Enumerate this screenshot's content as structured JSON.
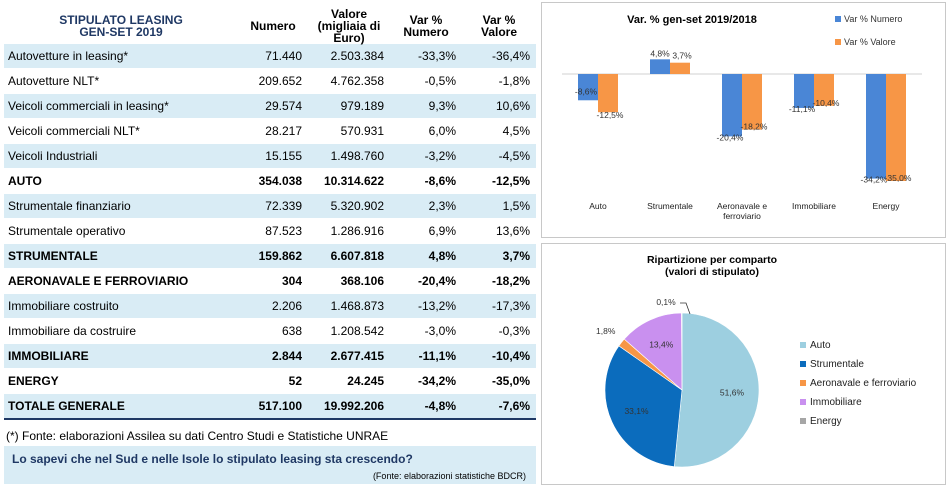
{
  "table": {
    "headers": [
      "STIPULATO LEASING\nGEN-SET  2019",
      "Numero",
      "Valore\n(migliaia di\nEuro)",
      "Var %\nNumero",
      "Var %\nValore"
    ],
    "rows": [
      {
        "label": "Autovetture in leasing*",
        "numero": "71.440",
        "valore": "2.503.384",
        "var_numero": "-33,3%",
        "var_valore": "-36,4%",
        "bold": false
      },
      {
        "label": "Autovetture NLT*",
        "numero": "209.652",
        "valore": "4.762.358",
        "var_numero": "-0,5%",
        "var_valore": "-1,8%",
        "bold": false
      },
      {
        "label": "Veicoli commerciali in leasing*",
        "numero": "29.574",
        "valore": "979.189",
        "var_numero": "9,3%",
        "var_valore": "10,6%",
        "bold": false
      },
      {
        "label": "Veicoli commerciali NLT*",
        "numero": "28.217",
        "valore": "570.931",
        "var_numero": "6,0%",
        "var_valore": "4,5%",
        "bold": false
      },
      {
        "label": "Veicoli Industriali",
        "numero": "15.155",
        "valore": "1.498.760",
        "var_numero": "-3,2%",
        "var_valore": "-4,5%",
        "bold": false
      },
      {
        "label": "AUTO",
        "numero": "354.038",
        "valore": "10.314.622",
        "var_numero": "-8,6%",
        "var_valore": "-12,5%",
        "bold": true
      },
      {
        "label": "Strumentale finanziario",
        "numero": "72.339",
        "valore": "5.320.902",
        "var_numero": "2,3%",
        "var_valore": "1,5%",
        "bold": false
      },
      {
        "label": "Strumentale operativo",
        "numero": "87.523",
        "valore": "1.286.916",
        "var_numero": "6,9%",
        "var_valore": "13,6%",
        "bold": false
      },
      {
        "label": "STRUMENTALE",
        "numero": "159.862",
        "valore": "6.607.818",
        "var_numero": "4,8%",
        "var_valore": "3,7%",
        "bold": true
      },
      {
        "label": "AERONAVALE E FERROVIARIO",
        "numero": "304",
        "valore": "368.106",
        "var_numero": "-20,4%",
        "var_valore": "-18,2%",
        "bold": true
      },
      {
        "label": "Immobiliare costruito",
        "numero": "2.206",
        "valore": "1.468.873",
        "var_numero": "-13,2%",
        "var_valore": "-17,3%",
        "bold": false
      },
      {
        "label": "Immobiliare da costruire",
        "numero": "638",
        "valore": "1.208.542",
        "var_numero": "-3,0%",
        "var_valore": "-0,3%",
        "bold": false
      },
      {
        "label": "IMMOBILIARE",
        "numero": "2.844",
        "valore": "2.677.415",
        "var_numero": "-11,1%",
        "var_valore": "-10,4%",
        "bold": true
      },
      {
        "label": "ENERGY",
        "numero": "52",
        "valore": "24.245",
        "var_numero": "-34,2%",
        "var_valore": "-35,0%",
        "bold": true
      },
      {
        "label": "TOTALE GENERALE",
        "numero": "517.100",
        "valore": "19.992.206",
        "var_numero": "-4,8%",
        "var_valore": "-7,6%",
        "bold": true,
        "total": true
      }
    ]
  },
  "footnote": "(*) Fonte: elaborazioni Assilea su dati Centro Studi e Statistiche UNRAE",
  "banner": {
    "title": "Lo sapevi che nel Sud e nelle Isole lo stipulato leasing sta crescendo?",
    "source": "(Fonte: elaborazioni statistiche BDCR)"
  },
  "colors": {
    "row_shade": "#d9ecf5",
    "header_text": "#1f3864",
    "numero": "#4a86d6",
    "valore": "#f79646",
    "pie": [
      "#9dcfe0",
      "#0b6cbd",
      "#f79646",
      "#c990ef",
      "#a6a6a6"
    ]
  },
  "chart_data": [
    {
      "type": "bar",
      "title": "Var. % gen-set 2019/2018",
      "categories": [
        "Auto",
        "Strumentale",
        "Aeronavale e\nferroviario",
        "Immobiliare",
        "Energy"
      ],
      "series": [
        {
          "name": "Var % Numero",
          "values": [
            -8.6,
            4.8,
            -20.4,
            -11.1,
            -34.2
          ],
          "labels": [
            "-8,6%",
            "4,8%",
            "-20,4%",
            "-11,1%",
            "-34,2%"
          ]
        },
        {
          "name": "Var % Valore",
          "values": [
            -12.5,
            3.7,
            -18.2,
            -10.4,
            -35.0
          ],
          "labels": [
            "-12,5%",
            "3,7%",
            "-18,2%",
            "-10,4%",
            "-35,0%"
          ]
        }
      ],
      "ylim": [
        -36,
        6
      ],
      "legend": "top-right",
      "grid": false
    },
    {
      "type": "pie",
      "title": "Ripartizione per comparto\n(valori di stipulato)",
      "labels": [
        "Auto",
        "Strumentale",
        "Aeronavale e ferroviario",
        "Immobiliare",
        "Energy"
      ],
      "values": [
        51.6,
        33.1,
        1.8,
        13.4,
        0.1
      ],
      "value_labels": [
        "51,6%",
        "33,1%",
        "1,8%",
        "13,4%",
        "0,1%"
      ],
      "legend": "right"
    }
  ]
}
